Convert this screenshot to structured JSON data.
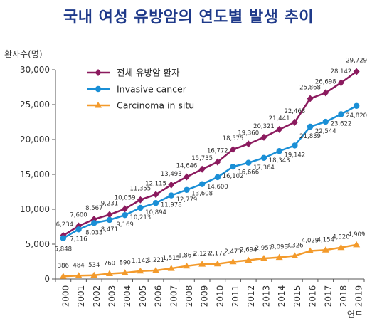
{
  "chart_data": {
    "type": "line",
    "title": "국내 여성 유방암의 연도별 발생 추이",
    "ylabel": "환자수(명)",
    "xlabel": "연도",
    "ylim": [
      0,
      30000
    ],
    "yticks": [
      "0",
      "5,000",
      "10,000",
      "15,000",
      "20,000",
      "25,000",
      "30,000"
    ],
    "ytick_values": [
      0,
      5000,
      10000,
      15000,
      20000,
      25000,
      30000
    ],
    "grid": false,
    "legend_position": "top-left",
    "categories": [
      "2000",
      "2001",
      "2002",
      "2003",
      "2004",
      "2005",
      "2006",
      "2007",
      "2008",
      "2009",
      "2010",
      "2011",
      "2012",
      "2013",
      "2014",
      "2015",
      "2016",
      "2017",
      "2018",
      "2019"
    ],
    "series": [
      {
        "name": "전체 유방암 환자",
        "color": "#8b1a5e",
        "marker": "diamond",
        "values": [
          6234,
          7600,
          8567,
          9231,
          10059,
          11355,
          12115,
          13493,
          14646,
          15735,
          16772,
          18575,
          19360,
          20321,
          21441,
          22468,
          25868,
          26698,
          28142,
          29729
        ],
        "labels": [
          "6,234",
          "7,600",
          "8,567",
          "9,231",
          "10,059",
          "11,355",
          "12,115",
          "13,493",
          "14,646",
          "15,735",
          "16,772",
          "18,575",
          "19,360",
          "20,321",
          "21,441",
          "22,468",
          "25,868",
          "26,698",
          "28,142",
          "29,729"
        ]
      },
      {
        "name": "Invasive cancer",
        "color": "#1a8fd6",
        "marker": "circle",
        "values": [
          5848,
          7116,
          8033,
          8471,
          9169,
          10213,
          10894,
          11978,
          12779,
          13608,
          14600,
          16102,
          16666,
          17364,
          18343,
          19142,
          21839,
          22544,
          23622,
          24820
        ],
        "labels": [
          "5,848",
          "7,116",
          "8,033",
          "8,471",
          "9,169",
          "10,213",
          "10,894",
          "11,978",
          "12,779",
          "13,608",
          "14,600",
          "16,102",
          "16,666",
          "17,364",
          "18,343",
          "19,142",
          "21,839",
          "22,544",
          "23,622",
          "24,820"
        ]
      },
      {
        "name": "Carcinoma in situ",
        "color": "#f39a2b",
        "marker": "triangle",
        "values": [
          386,
          484,
          534,
          760,
          890,
          1142,
          1221,
          1515,
          1867,
          2127,
          2172,
          2473,
          2694,
          2957,
          3098,
          3326,
          4029,
          4154,
          4520,
          4909
        ],
        "labels": [
          "386",
          "484",
          "534",
          "760",
          "890",
          "1,142",
          "1,221",
          "1,515",
          "1,867",
          "2,127",
          "2,172",
          "2,473",
          "2,694",
          "2,957",
          "3,098",
          "3,326",
          "4,029",
          "4,154",
          "4,520",
          "4,909"
        ]
      }
    ]
  }
}
